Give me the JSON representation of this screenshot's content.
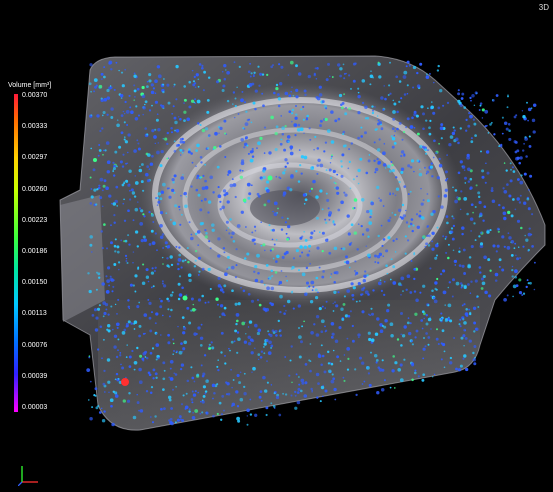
{
  "viewport": {
    "mode_label": "3D"
  },
  "legend": {
    "title": "Volume [mm³]",
    "ticks": [
      "0.00370",
      "0.00333",
      "0.00297",
      "0.00260",
      "0.00223",
      "0.00186",
      "0.00150",
      "0.00113",
      "0.00076",
      "0.00039",
      "0.00003"
    ]
  },
  "colors": {
    "background": "#000000",
    "part_gray": "#8a8a8a",
    "pore_blue": "#2f5cff",
    "pore_cyan": "#27c7ff",
    "pore_green": "#3cff8a",
    "pore_red": "#ff3030"
  },
  "axis_triad": {
    "icon": "xyz-axis-triad-icon"
  }
}
